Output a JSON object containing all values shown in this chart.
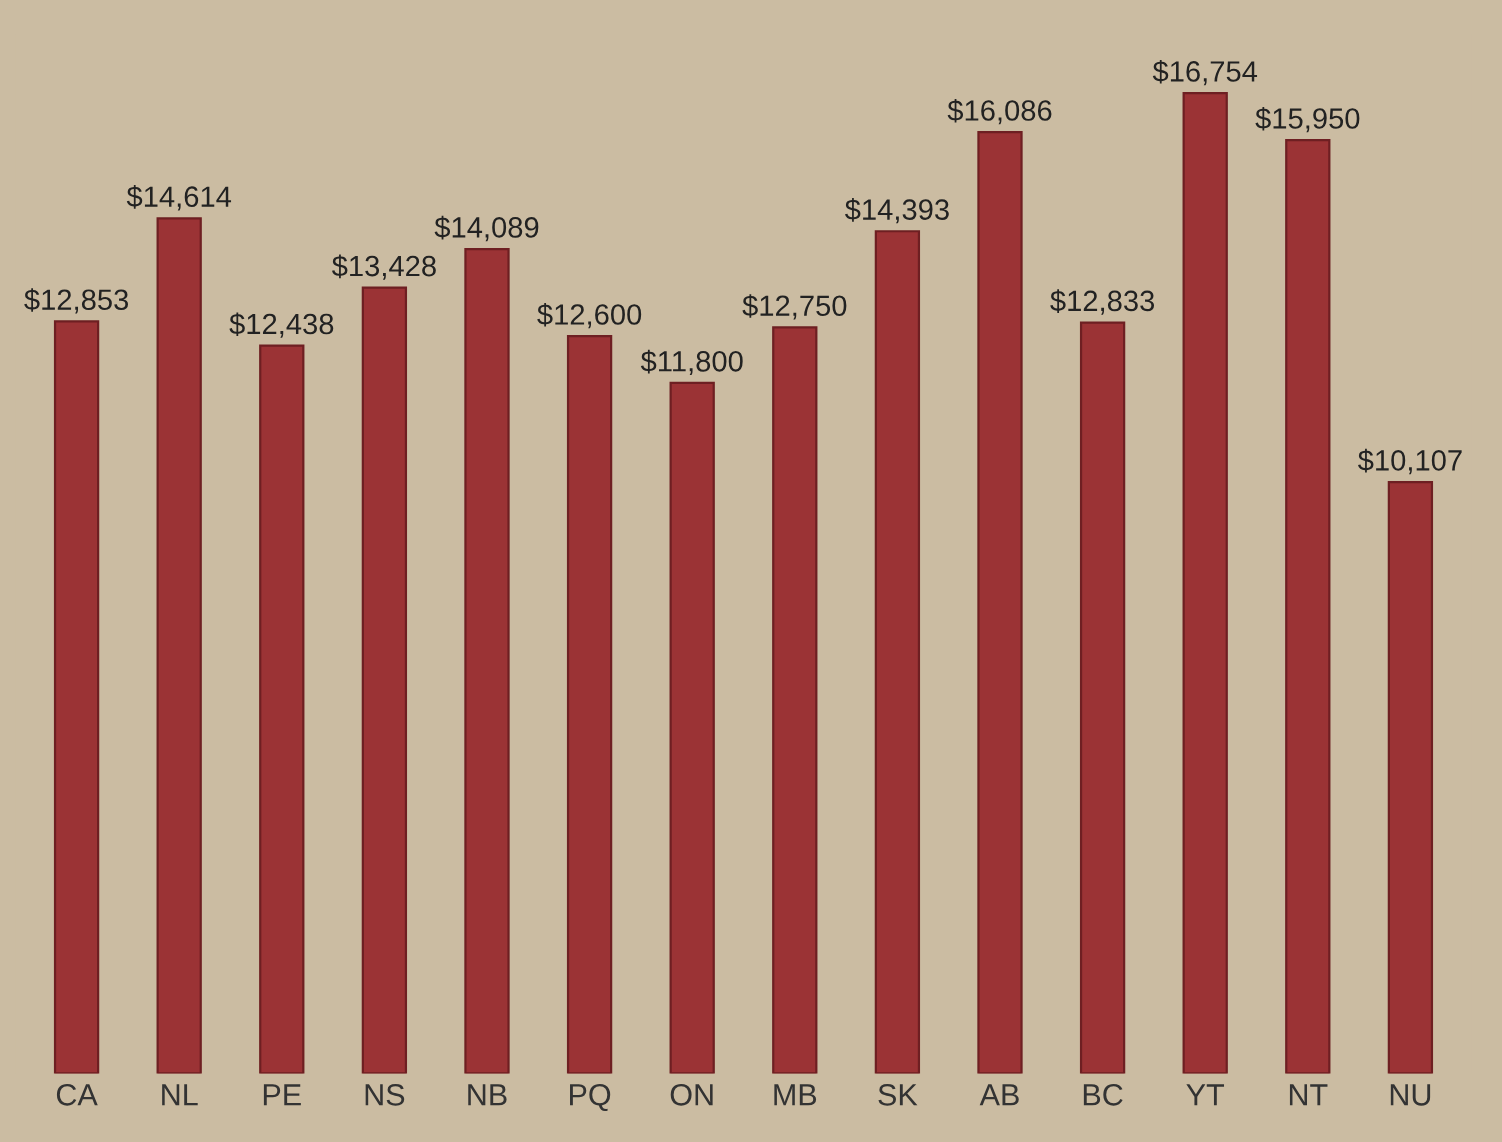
{
  "chart_data": {
    "type": "bar",
    "categories": [
      "CA",
      "NL",
      "PE",
      "NS",
      "NB",
      "PQ",
      "ON",
      "MB",
      "SK",
      "AB",
      "BC",
      "YT",
      "NT",
      "NU"
    ],
    "values": [
      12853,
      14614,
      12438,
      13428,
      14089,
      12600,
      11800,
      12750,
      14393,
      16086,
      12833,
      16754,
      15950,
      10107
    ],
    "value_labels": [
      "$12,853",
      "$14,614",
      "$12,438",
      "$13,428",
      "$14,089",
      "$12,600",
      "$11,800",
      "$12,750",
      "$14,393",
      "$16,086",
      "$12,833",
      "$16,754",
      "$15,950",
      "$10,107"
    ],
    "color": "#9b3335",
    "grid": false,
    "legend": false
  }
}
